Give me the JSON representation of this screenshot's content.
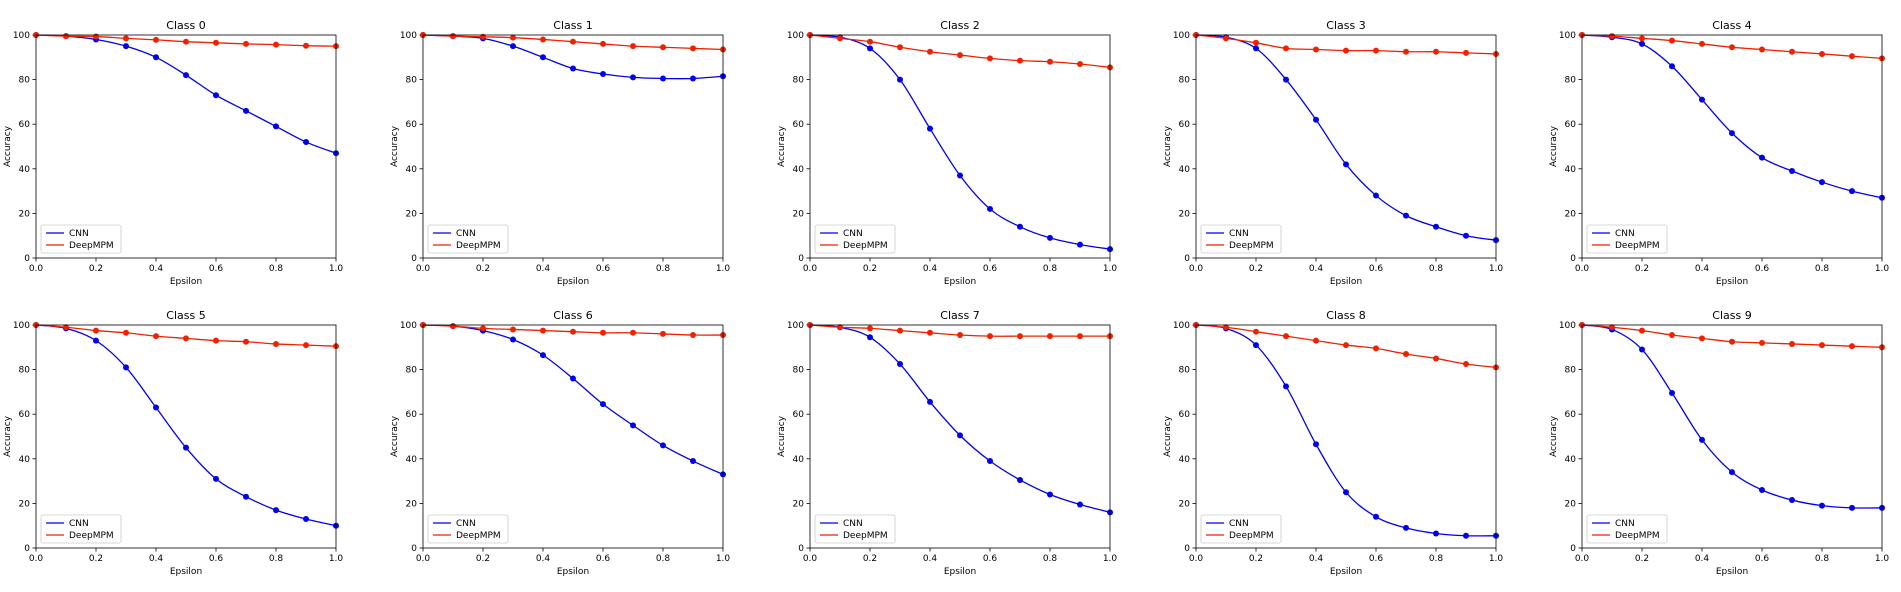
{
  "colors": {
    "cnn": "#0000ee",
    "deepmpm": "#ee2200",
    "axis": "#000000",
    "background": "#ffffff"
  },
  "layout": {
    "rows": 2,
    "cols": 5
  },
  "chart_data": [
    {
      "type": "line",
      "title": "Class 0",
      "xlabel": "Epsilon",
      "ylabel": "Accuracy",
      "x": [
        0.0,
        0.1,
        0.2,
        0.3,
        0.4,
        0.5,
        0.6,
        0.7,
        0.8,
        0.9,
        1.0
      ],
      "xlim": [
        0,
        1
      ],
      "ylim": [
        0,
        100
      ],
      "xticks": [
        "0.0",
        "0.2",
        "0.4",
        "0.6",
        "0.8",
        "1.0"
      ],
      "yticks": [
        "0",
        "20",
        "40",
        "60",
        "80",
        "100"
      ],
      "legend": "lower-left",
      "grid": false,
      "series": [
        {
          "name": "CNN",
          "values": [
            100,
            99.5,
            98,
            95,
            90,
            82,
            73,
            66,
            59,
            52,
            47
          ]
        },
        {
          "name": "DeepMPM",
          "values": [
            100,
            99.5,
            99.3,
            98.5,
            97.8,
            97,
            96.5,
            96,
            95.7,
            95.2,
            95
          ]
        }
      ]
    },
    {
      "type": "line",
      "title": "Class 1",
      "xlabel": "Epsilon",
      "ylabel": "Accuracy",
      "x": [
        0.0,
        0.1,
        0.2,
        0.3,
        0.4,
        0.5,
        0.6,
        0.7,
        0.8,
        0.9,
        1.0
      ],
      "xlim": [
        0,
        1
      ],
      "ylim": [
        0,
        100
      ],
      "xticks": [
        "0.0",
        "0.2",
        "0.4",
        "0.6",
        "0.8",
        "1.0"
      ],
      "yticks": [
        "0",
        "20",
        "40",
        "60",
        "80",
        "100"
      ],
      "legend": "lower-left",
      "grid": false,
      "series": [
        {
          "name": "CNN",
          "values": [
            100,
            99.5,
            98.5,
            95,
            90,
            85,
            82.5,
            81,
            80.5,
            80.5,
            81.5
          ]
        },
        {
          "name": "DeepMPM",
          "values": [
            100,
            99.5,
            99.2,
            98.8,
            98,
            97,
            96,
            95,
            94.5,
            94,
            93.5
          ]
        }
      ]
    },
    {
      "type": "line",
      "title": "Class 2",
      "xlabel": "Epsilon",
      "ylabel": "Accuracy",
      "x": [
        0.0,
        0.1,
        0.2,
        0.3,
        0.4,
        0.5,
        0.6,
        0.7,
        0.8,
        0.9,
        1.0
      ],
      "xlim": [
        0,
        1
      ],
      "ylim": [
        0,
        100
      ],
      "xticks": [
        "0.0",
        "0.2",
        "0.4",
        "0.6",
        "0.8",
        "1.0"
      ],
      "yticks": [
        "0",
        "20",
        "40",
        "60",
        "80",
        "100"
      ],
      "legend": "lower-left",
      "grid": false,
      "series": [
        {
          "name": "CNN",
          "values": [
            100,
            99,
            94,
            80,
            58,
            37,
            22,
            14,
            9,
            6,
            4
          ]
        },
        {
          "name": "DeepMPM",
          "values": [
            100,
            98.5,
            97,
            94.5,
            92.5,
            91,
            89.5,
            88.5,
            88,
            87,
            85.5
          ]
        }
      ]
    },
    {
      "type": "line",
      "title": "Class 3",
      "xlabel": "Epsilon",
      "ylabel": "Accuracy",
      "x": [
        0.0,
        0.1,
        0.2,
        0.3,
        0.4,
        0.5,
        0.6,
        0.7,
        0.8,
        0.9,
        1.0
      ],
      "xlim": [
        0,
        1
      ],
      "ylim": [
        0,
        100
      ],
      "xticks": [
        "0.0",
        "0.2",
        "0.4",
        "0.6",
        "0.8",
        "1.0"
      ],
      "yticks": [
        "0",
        "20",
        "40",
        "60",
        "80",
        "100"
      ],
      "legend": "lower-left",
      "grid": false,
      "series": [
        {
          "name": "CNN",
          "values": [
            100,
            99,
            94,
            80,
            62,
            42,
            28,
            19,
            14,
            10,
            8
          ]
        },
        {
          "name": "DeepMPM",
          "values": [
            100,
            98.5,
            96.5,
            94,
            93.5,
            93,
            93,
            92.5,
            92.5,
            92,
            91.5
          ]
        }
      ]
    },
    {
      "type": "line",
      "title": "Class 4",
      "xlabel": "Epsilon",
      "ylabel": "Accuracy",
      "x": [
        0.0,
        0.1,
        0.2,
        0.3,
        0.4,
        0.5,
        0.6,
        0.7,
        0.8,
        0.9,
        1.0
      ],
      "xlim": [
        0,
        1
      ],
      "ylim": [
        0,
        100
      ],
      "xticks": [
        "0.0",
        "0.2",
        "0.4",
        "0.6",
        "0.8",
        "1.0"
      ],
      "yticks": [
        "0",
        "20",
        "40",
        "60",
        "80",
        "100"
      ],
      "legend": "lower-left",
      "grid": false,
      "series": [
        {
          "name": "CNN",
          "values": [
            100,
            99,
            96,
            86,
            71,
            56,
            45,
            39,
            34,
            30,
            27
          ]
        },
        {
          "name": "DeepMPM",
          "values": [
            100,
            99.5,
            98.5,
            97.5,
            96,
            94.5,
            93.5,
            92.5,
            91.5,
            90.5,
            89.5
          ]
        }
      ]
    },
    {
      "type": "line",
      "title": "Class 5",
      "xlabel": "Epsilon",
      "ylabel": "Accuracy",
      "x": [
        0.0,
        0.1,
        0.2,
        0.3,
        0.4,
        0.5,
        0.6,
        0.7,
        0.8,
        0.9,
        1.0
      ],
      "xlim": [
        0,
        1
      ],
      "ylim": [
        0,
        100
      ],
      "xticks": [
        "0.0",
        "0.2",
        "0.4",
        "0.6",
        "0.8",
        "1.0"
      ],
      "yticks": [
        "0",
        "20",
        "40",
        "60",
        "80",
        "100"
      ],
      "legend": "lower-left",
      "grid": false,
      "series": [
        {
          "name": "CNN",
          "values": [
            100,
            98.5,
            93,
            81,
            63,
            45,
            31,
            23,
            17,
            13,
            10
          ]
        },
        {
          "name": "DeepMPM",
          "values": [
            100,
            99,
            97.5,
            96.5,
            95,
            94,
            93,
            92.5,
            91.5,
            91,
            90.5
          ]
        }
      ]
    },
    {
      "type": "line",
      "title": "Class 6",
      "xlabel": "Epsilon",
      "ylabel": "Accuracy",
      "x": [
        0.0,
        0.1,
        0.2,
        0.3,
        0.4,
        0.5,
        0.6,
        0.7,
        0.8,
        0.9,
        1.0
      ],
      "xlim": [
        0,
        1
      ],
      "ylim": [
        0,
        100
      ],
      "xticks": [
        "0.0",
        "0.2",
        "0.4",
        "0.6",
        "0.8",
        "1.0"
      ],
      "yticks": [
        "0",
        "20",
        "40",
        "60",
        "80",
        "100"
      ],
      "legend": "lower-left",
      "grid": false,
      "series": [
        {
          "name": "CNN",
          "values": [
            100,
            99.5,
            97.5,
            93.5,
            86.5,
            76,
            64.5,
            55,
            46,
            39,
            33
          ]
        },
        {
          "name": "DeepMPM",
          "values": [
            100,
            99.5,
            98.5,
            98,
            97.5,
            97,
            96.5,
            96.5,
            96,
            95.5,
            95.5
          ]
        }
      ]
    },
    {
      "type": "line",
      "title": "Class 7",
      "xlabel": "Epsilon",
      "ylabel": "Accuracy",
      "x": [
        0.0,
        0.1,
        0.2,
        0.3,
        0.4,
        0.5,
        0.6,
        0.7,
        0.8,
        0.9,
        1.0
      ],
      "xlim": [
        0,
        1
      ],
      "ylim": [
        0,
        100
      ],
      "xticks": [
        "0.0",
        "0.2",
        "0.4",
        "0.6",
        "0.8",
        "1.0"
      ],
      "yticks": [
        "0",
        "20",
        "40",
        "60",
        "80",
        "100"
      ],
      "legend": "lower-left",
      "grid": false,
      "series": [
        {
          "name": "CNN",
          "values": [
            100,
            99,
            94.5,
            82.5,
            65.5,
            50.5,
            39,
            30.5,
            24,
            19.5,
            16
          ]
        },
        {
          "name": "DeepMPM",
          "values": [
            100,
            99,
            98.5,
            97.5,
            96.5,
            95.5,
            95,
            95,
            95,
            95,
            95
          ]
        }
      ]
    },
    {
      "type": "line",
      "title": "Class 8",
      "xlabel": "Epsilon",
      "ylabel": "Accuracy",
      "x": [
        0.0,
        0.1,
        0.2,
        0.3,
        0.4,
        0.5,
        0.6,
        0.7,
        0.8,
        0.9,
        1.0
      ],
      "xlim": [
        0,
        1
      ],
      "ylim": [
        0,
        100
      ],
      "xticks": [
        "0.0",
        "0.2",
        "0.4",
        "0.6",
        "0.8",
        "1.0"
      ],
      "yticks": [
        "0",
        "20",
        "40",
        "60",
        "80",
        "100"
      ],
      "legend": "lower-left",
      "grid": false,
      "series": [
        {
          "name": "CNN",
          "values": [
            100,
            98.5,
            91,
            72.5,
            46.5,
            25,
            14,
            9,
            6.5,
            5.5,
            5.5
          ]
        },
        {
          "name": "DeepMPM",
          "values": [
            100,
            99,
            97,
            95,
            93,
            91,
            89.5,
            87,
            85,
            82.5,
            81
          ]
        }
      ]
    },
    {
      "type": "line",
      "title": "Class 9",
      "xlabel": "Epsilon",
      "ylabel": "Accuracy",
      "x": [
        0.0,
        0.1,
        0.2,
        0.3,
        0.4,
        0.5,
        0.6,
        0.7,
        0.8,
        0.9,
        1.0
      ],
      "xlim": [
        0,
        1
      ],
      "ylim": [
        0,
        100
      ],
      "xticks": [
        "0.0",
        "0.2",
        "0.4",
        "0.6",
        "0.8",
        "1.0"
      ],
      "yticks": [
        "0",
        "20",
        "40",
        "60",
        "80",
        "100"
      ],
      "legend": "lower-left",
      "grid": false,
      "series": [
        {
          "name": "CNN",
          "values": [
            100,
            98,
            89,
            69.5,
            48.5,
            34,
            26,
            21.5,
            19,
            18,
            18
          ]
        },
        {
          "name": "DeepMPM",
          "values": [
            100,
            99,
            97.5,
            95.5,
            94,
            92.5,
            92,
            91.5,
            91,
            90.5,
            90
          ]
        }
      ]
    }
  ]
}
